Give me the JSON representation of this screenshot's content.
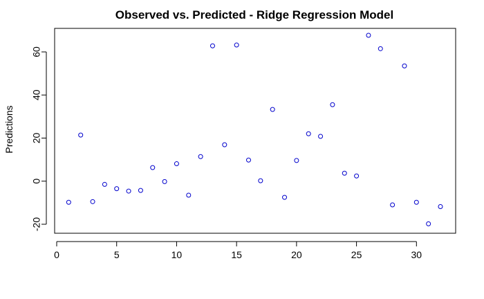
{
  "chart_data": {
    "type": "scatter",
    "title": "Observed vs. Predicted - Ridge Regression Model",
    "xlabel": "",
    "ylabel": "Predictions",
    "xlim": [
      0,
      32.5
    ],
    "ylim": [
      -22,
      70
    ],
    "x_ticks": [
      0,
      5,
      10,
      15,
      20,
      25,
      30
    ],
    "y_ticks": [
      -20,
      0,
      20,
      40,
      60
    ],
    "grid": false,
    "point_color": "#0000cc",
    "x": [
      1,
      2,
      3,
      4,
      5,
      6,
      7,
      8,
      9,
      10,
      11,
      12,
      13,
      14,
      15,
      16,
      17,
      18,
      19,
      20,
      21,
      22,
      23,
      24,
      25,
      26,
      27,
      28,
      29,
      30,
      31,
      32
    ],
    "y": [
      -9.8,
      21.4,
      -9.5,
      -1.5,
      -3.5,
      -4.6,
      -4.3,
      6.3,
      -0.2,
      8.1,
      -6.5,
      11.4,
      62.8,
      16.9,
      63.2,
      9.8,
      0.2,
      33.3,
      -7.5,
      9.6,
      22.0,
      20.8,
      35.5,
      3.7,
      2.4,
      67.7,
      61.5,
      -11.0,
      53.5,
      -9.8,
      -19.8,
      -11.8
    ]
  }
}
